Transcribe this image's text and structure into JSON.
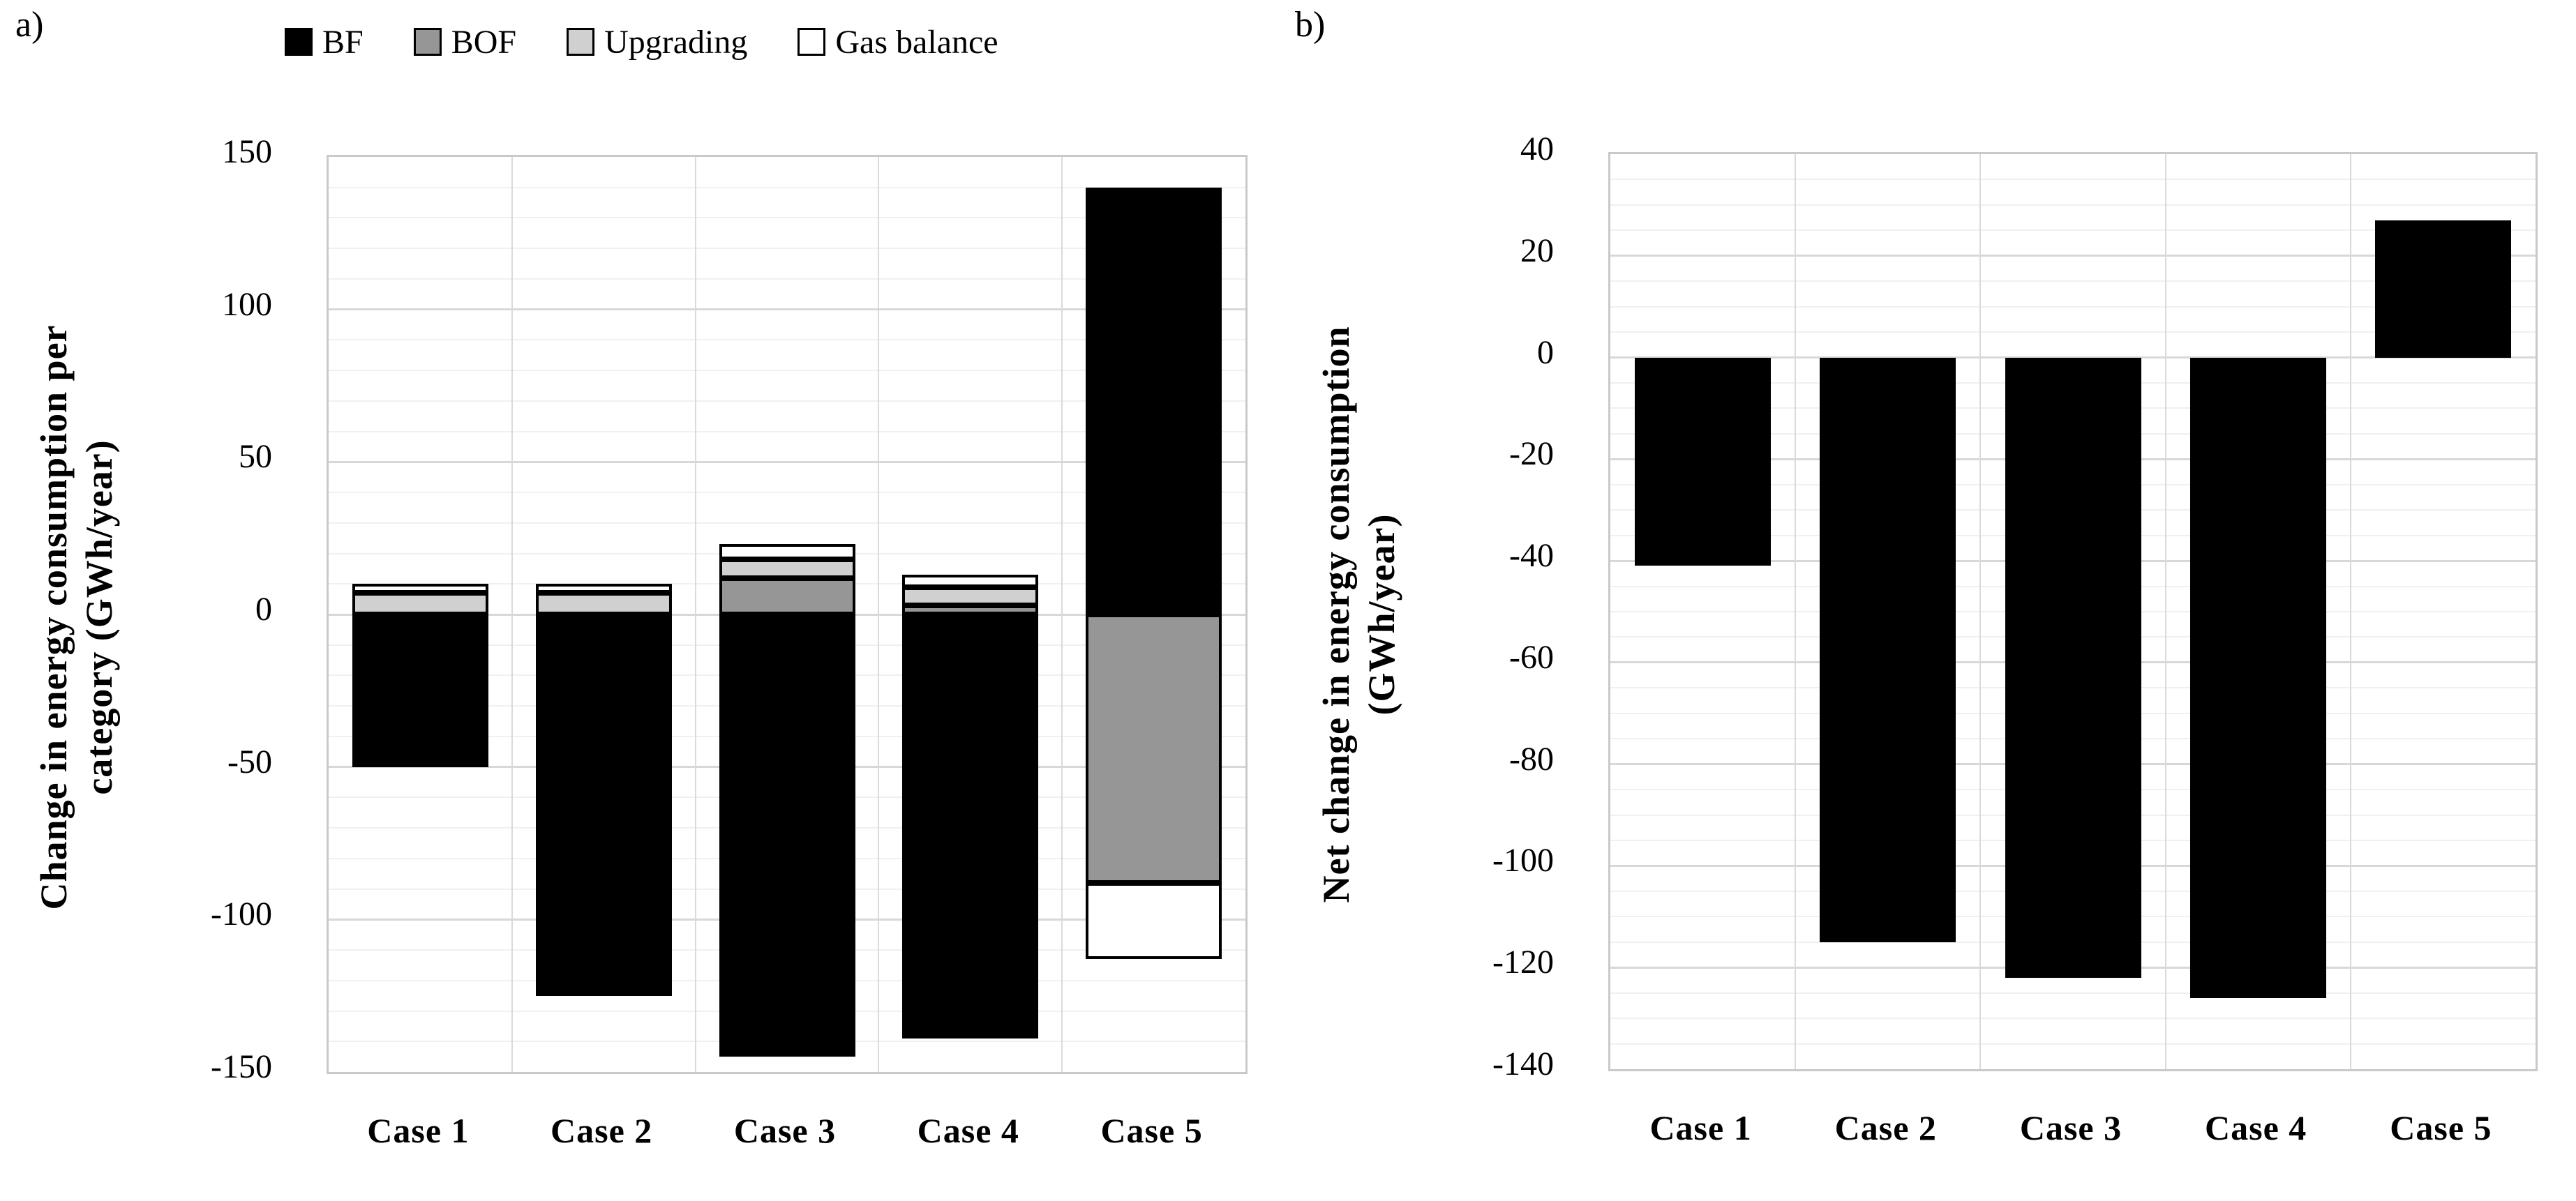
{
  "figure": {
    "panel_a_letter": "a)",
    "panel_b_letter": "b)"
  },
  "colors": {
    "bf": "#000000",
    "bof": "#969696",
    "upgrading": "#d0d0d0",
    "gas_balance": "#ffffff",
    "grid_minor": "#f0f0f0",
    "grid_major": "#d8d8d8",
    "plot_border": "#c9c9c9"
  },
  "chart_data": [
    {
      "panel": "a)",
      "type": "bar",
      "stacked": true,
      "ylabel": "Change in energy consumption per category (GWh/year)",
      "ylabel_lines": [
        "Change in energy consumption per",
        "category (GWh/year)"
      ],
      "categories": [
        "Case 1",
        "Case 2",
        "Case 3",
        "Case 4",
        "Case 5"
      ],
      "series": [
        {
          "name": "BF",
          "color": "#000000",
          "values": [
            -50,
            -125,
            -145,
            -139,
            140
          ]
        },
        {
          "name": "BOF",
          "color": "#969696",
          "values": [
            0,
            0,
            12,
            3,
            -88
          ]
        },
        {
          "name": "Upgrading",
          "color": "#d0d0d0",
          "values": [
            7,
            7,
            6,
            6,
            0
          ]
        },
        {
          "name": "Gas balance",
          "color": "#ffffff",
          "values": [
            3,
            3,
            5,
            4,
            -25
          ]
        }
      ],
      "ylim": [
        -150,
        150
      ],
      "ytick_step": 50,
      "minor_step": 10,
      "yticks": [
        "150",
        "100",
        "50",
        "0",
        "-50",
        "-100",
        "-150"
      ],
      "grid": true,
      "legend_position": "top"
    },
    {
      "panel": "b)",
      "type": "bar",
      "stacked": false,
      "ylabel": "Net change in energy consumption (GWh/year)",
      "ylabel_lines": [
        "Net change in energy consumption",
        "(GWh/year)"
      ],
      "categories": [
        "Case 1",
        "Case 2",
        "Case 3",
        "Case 4",
        "Case 5"
      ],
      "series": [
        {
          "name": "Net change",
          "color": "#000000",
          "values": [
            -41,
            -115,
            -122,
            -126,
            27
          ]
        }
      ],
      "ylim": [
        -140,
        40
      ],
      "ytick_step": 20,
      "minor_step": 5,
      "yticks": [
        "40",
        "20",
        "0",
        "-20",
        "-40",
        "-60",
        "-80",
        "-100",
        "-120",
        "-140"
      ],
      "grid": true,
      "legend_position": "none"
    }
  ]
}
